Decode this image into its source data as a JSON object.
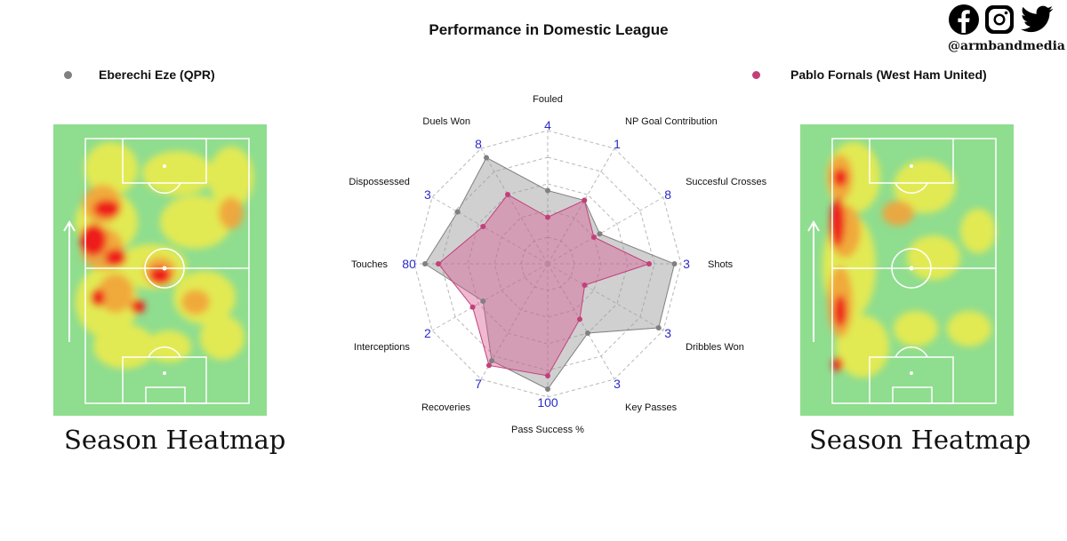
{
  "title": "Performance in Domestic League",
  "social": {
    "handle": "@armbandmedia"
  },
  "players": {
    "left": {
      "name": "Eberechi Eze (QPR)",
      "color": "#808080"
    },
    "right": {
      "name": "Pablo Fornals (West Ham United)",
      "color": "#c2407a"
    }
  },
  "captions": {
    "left": "Season Heatmap",
    "right": "Season Heatmap"
  },
  "chart_data": {
    "type": "radar",
    "title": "Performance in Domestic League",
    "axes": [
      "Fouled",
      "NP Goal Contribution",
      "Succesful Crosses",
      "Shots",
      "Dribbles Won",
      "Key Passes",
      "Pass Success %",
      "Recoveries",
      "Interceptions",
      "Touches",
      "Dispossessed",
      "Duels Won"
    ],
    "axis_max": [
      "4",
      "1",
      "8",
      "3",
      "3",
      "3",
      "100",
      "7",
      "2",
      "80",
      "3",
      "8"
    ],
    "series": [
      {
        "name": "Eberechi Eze (QPR)",
        "color": "#808080",
        "values": [
          0.55,
          0.55,
          0.45,
          0.95,
          0.96,
          0.6,
          0.94,
          0.84,
          0.56,
          0.92,
          0.78,
          0.92
        ]
      },
      {
        "name": "Pablo Fornals (West Ham United)",
        "color": "#c2407a",
        "values": [
          0.35,
          0.55,
          0.4,
          0.76,
          0.32,
          0.48,
          0.84,
          0.88,
          0.65,
          0.82,
          0.56,
          0.6
        ]
      }
    ]
  }
}
